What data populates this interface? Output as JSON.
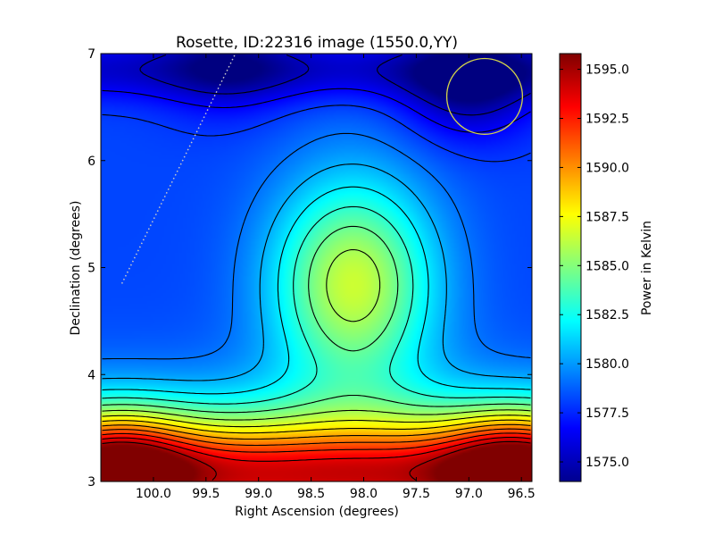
{
  "chart_data": {
    "type": "heatmap",
    "title": "Rosette, ID:22316 image (1550.0,YY)",
    "xlabel": "Right Ascension (degrees)",
    "ylabel": "Declination (degrees)",
    "xlim": [
      100.5,
      96.4
    ],
    "ylim": [
      3,
      7
    ],
    "x_axis_inverted": true,
    "xticks": [
      100.0,
      99.5,
      99.0,
      98.5,
      98.0,
      97.5,
      97.0,
      96.5
    ],
    "xtick_labels": [
      "100.0",
      "99.5",
      "99.0",
      "98.5",
      "98.0",
      "97.5",
      "97.0",
      "96.5"
    ],
    "yticks": [
      3,
      4,
      5,
      6,
      7
    ],
    "ytick_labels": [
      "3",
      "4",
      "5",
      "6",
      "7"
    ],
    "colormap": "jet",
    "contour_lines": true,
    "colorbar": {
      "label": "Power in Kelvin",
      "range": [
        1574.0,
        1595.8
      ],
      "ticks": [
        1575.0,
        1577.5,
        1580.0,
        1582.5,
        1585.0,
        1587.5,
        1590.0,
        1592.5,
        1595.0
      ],
      "tick_labels": [
        "1575.0",
        "1577.5",
        "1580.0",
        "1582.5",
        "1585.0",
        "1587.5",
        "1590.0",
        "1592.5",
        "1595.0"
      ]
    },
    "field": {
      "baseline": 1578.2,
      "rise_toward_low_dec": "sigmoid",
      "features": [
        {
          "kind": "peak",
          "ra": 98.1,
          "dec": 4.85,
          "value": 1586.5
        },
        {
          "kind": "trough",
          "ra": 97.0,
          "dec": 6.7,
          "value": 1574.5
        },
        {
          "kind": "trough",
          "ra": 99.3,
          "dec": 6.9,
          "value": 1576.0
        },
        {
          "kind": "peak",
          "ra": 96.6,
          "dec": 3.15,
          "value": 1595.5
        },
        {
          "kind": "peak",
          "ra": 100.3,
          "dec": 3.15,
          "value": 1595.0
        }
      ]
    },
    "annotations": {
      "circle": {
        "ra": 96.85,
        "dec": 6.6,
        "radius_deg": 0.36,
        "color": "#d4d44a"
      },
      "dotted_line": {
        "from": [
          100.3,
          4.85
        ],
        "to": [
          99.22,
          7.0
        ],
        "color": "#c8c8c8"
      }
    }
  }
}
